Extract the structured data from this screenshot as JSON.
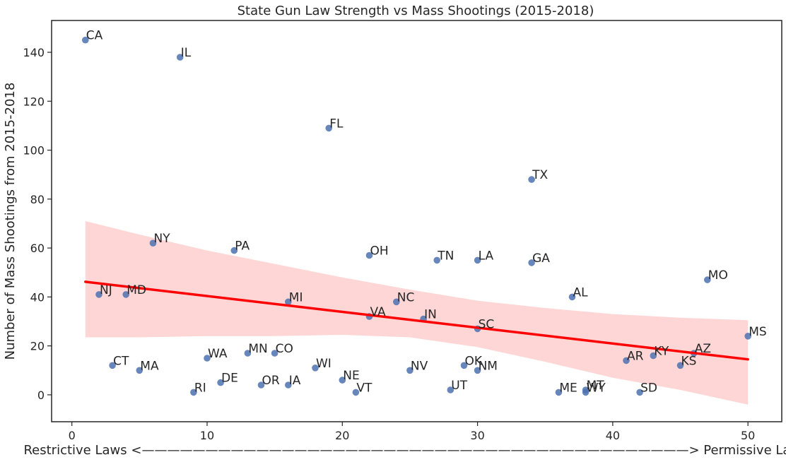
{
  "chart_data": {
    "type": "scatter",
    "title": "State Gun Law Strength vs Mass Shootings (2015-2018)",
    "xlabel": "Restrictive Laws <———————————————————————————————————————————> Permissive Laws",
    "ylabel": "Number of Mass Shootings from 2015-2018",
    "xlim": [
      -1.5,
      52.5
    ],
    "ylim": [
      -11,
      153
    ],
    "xticks": [
      0,
      10,
      20,
      30,
      40,
      50
    ],
    "yticks": [
      0,
      20,
      40,
      60,
      80,
      100,
      120,
      140
    ],
    "grid": false,
    "colors": {
      "points": "#4c72b0",
      "fit_line": "#ff0000",
      "confidence_band": "#ffd6d6"
    },
    "points": [
      {
        "label": "CA",
        "x": 1,
        "y": 145
      },
      {
        "label": "NJ",
        "x": 2,
        "y": 41
      },
      {
        "label": "CT",
        "x": 3,
        "y": 12
      },
      {
        "label": "MD",
        "x": 4,
        "y": 41
      },
      {
        "label": "MA",
        "x": 5,
        "y": 10
      },
      {
        "label": "NY",
        "x": 6,
        "y": 62
      },
      {
        "label": "IL",
        "x": 8,
        "y": 138
      },
      {
        "label": "RI",
        "x": 9,
        "y": 1
      },
      {
        "label": "WA",
        "x": 10,
        "y": 15
      },
      {
        "label": "DE",
        "x": 11,
        "y": 5
      },
      {
        "label": "PA",
        "x": 12,
        "y": 59
      },
      {
        "label": "MN",
        "x": 13,
        "y": 17
      },
      {
        "label": "OR",
        "x": 14,
        "y": 4
      },
      {
        "label": "CO",
        "x": 15,
        "y": 17
      },
      {
        "label": "MI",
        "x": 16,
        "y": 38
      },
      {
        "label": "IA",
        "x": 16,
        "y": 4
      },
      {
        "label": "WI",
        "x": 18,
        "y": 11
      },
      {
        "label": "FL",
        "x": 19,
        "y": 109
      },
      {
        "label": "NE",
        "x": 20,
        "y": 6
      },
      {
        "label": "VT",
        "x": 21,
        "y": 1
      },
      {
        "label": "OH",
        "x": 22,
        "y": 57
      },
      {
        "label": "VA",
        "x": 22,
        "y": 32
      },
      {
        "label": "NC",
        "x": 24,
        "y": 38
      },
      {
        "label": "NV",
        "x": 25,
        "y": 10
      },
      {
        "label": "IN",
        "x": 26,
        "y": 31
      },
      {
        "label": "TN",
        "x": 27,
        "y": 55
      },
      {
        "label": "UT",
        "x": 28,
        "y": 2
      },
      {
        "label": "OK",
        "x": 29,
        "y": 12
      },
      {
        "label": "LA",
        "x": 30,
        "y": 55
      },
      {
        "label": "SC",
        "x": 30,
        "y": 27
      },
      {
        "label": "NM",
        "x": 30,
        "y": 10
      },
      {
        "label": "TX",
        "x": 34,
        "y": 88
      },
      {
        "label": "GA",
        "x": 34,
        "y": 54
      },
      {
        "label": "ME",
        "x": 36,
        "y": 1
      },
      {
        "label": "AL",
        "x": 37,
        "y": 40
      },
      {
        "label": "MT",
        "x": 38,
        "y": 2
      },
      {
        "label": "WY",
        "x": 38,
        "y": 1
      },
      {
        "label": "AR",
        "x": 41,
        "y": 14
      },
      {
        "label": "SD",
        "x": 42,
        "y": 1
      },
      {
        "label": "KY",
        "x": 43,
        "y": 16
      },
      {
        "label": "KS",
        "x": 45,
        "y": 12
      },
      {
        "label": "AZ",
        "x": 46,
        "y": 17
      },
      {
        "label": "MO",
        "x": 47,
        "y": 47
      },
      {
        "label": "MS",
        "x": 50,
        "y": 24
      }
    ],
    "regression_line": {
      "x": [
        1,
        50
      ],
      "y": [
        46.2,
        14.5
      ]
    },
    "confidence_band": {
      "x": [
        1,
        5,
        10,
        15,
        20,
        25,
        30,
        35,
        40,
        45,
        50
      ],
      "upper": [
        71,
        65.5,
        59,
        53.5,
        48,
        43,
        38.5,
        35.5,
        33,
        31.5,
        30.5
      ],
      "lower": [
        23.5,
        23.5,
        24,
        24,
        24.5,
        23.5,
        19.5,
        13.5,
        7,
        2,
        -4
      ]
    }
  }
}
